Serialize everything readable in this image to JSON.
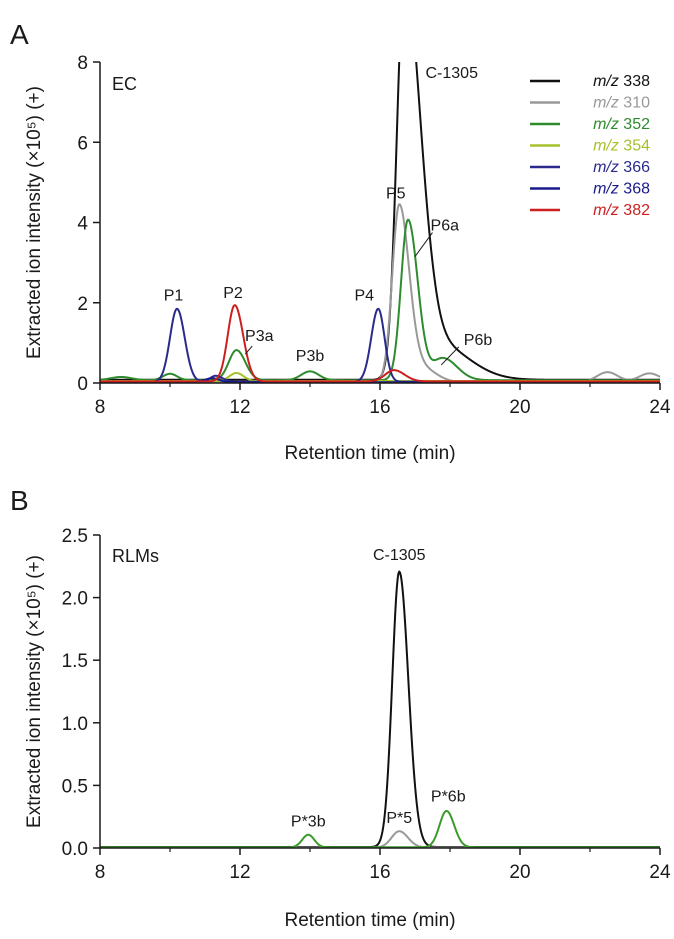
{
  "chart_data": [
    {
      "type": "line",
      "panel_letter": "A",
      "inset_label": "EC",
      "xlabel": "Retention time (min)",
      "ylabel": "Extracted ion intensity (×10⁵) (+)",
      "xlim": [
        8,
        24
      ],
      "ylim": [
        0,
        8
      ],
      "xticks": [
        8,
        12,
        16,
        20,
        24
      ],
      "yticks": [
        0,
        2,
        4,
        6,
        8
      ],
      "ytick_labels": [
        "0",
        "2",
        "4",
        "6",
        "8"
      ],
      "legend_position": "top-right",
      "series": [
        {
          "name": "338",
          "name_prefix": "m/z",
          "color": "#111111",
          "baseline": 0.08,
          "peaks": [
            {
              "x": 16.7,
              "h": 10.0,
              "wl": 0.22,
              "wr": 0.45
            },
            {
              "x": 17.6,
              "h": 0.9,
              "wl": 0.4,
              "wr": 0.9
            }
          ]
        },
        {
          "name": "310",
          "name_prefix": "m/z",
          "color": "#999999",
          "baseline": 0.02,
          "peaks": [
            {
              "x": 16.55,
              "h": 4.4,
              "wl": 0.2,
              "wr": 0.28
            },
            {
              "x": 17.2,
              "h": 0.35,
              "wl": 0.3,
              "wr": 0.4
            },
            {
              "x": 22.5,
              "h": 0.25,
              "wl": 0.3,
              "wr": 0.3
            },
            {
              "x": 23.7,
              "h": 0.22,
              "wl": 0.3,
              "wr": 0.3
            }
          ]
        },
        {
          "name": "352",
          "name_prefix": "m/z",
          "color": "#2e8b2e",
          "baseline": 0.07,
          "peaks": [
            {
              "x": 8.6,
              "h": 0.08,
              "wl": 0.3,
              "wr": 0.3
            },
            {
              "x": 10.0,
              "h": 0.16,
              "wl": 0.2,
              "wr": 0.2
            },
            {
              "x": 11.9,
              "h": 0.75,
              "wl": 0.22,
              "wr": 0.25
            },
            {
              "x": 14.0,
              "h": 0.22,
              "wl": 0.25,
              "wr": 0.25
            },
            {
              "x": 16.8,
              "h": 4.0,
              "wl": 0.2,
              "wr": 0.28
            },
            {
              "x": 17.8,
              "h": 0.55,
              "wl": 0.3,
              "wr": 0.4
            }
          ]
        },
        {
          "name": "354",
          "name_prefix": "m/z",
          "color": "#a6c22a",
          "baseline": 0.05,
          "peaks": [
            {
              "x": 11.9,
              "h": 0.2,
              "wl": 0.2,
              "wr": 0.2
            }
          ]
        },
        {
          "name": "366",
          "name_prefix": "m/z",
          "color": "#2a2a8c",
          "baseline": 0.03,
          "peaks": [
            {
              "x": 10.2,
              "h": 1.82,
              "wl": 0.2,
              "wr": 0.22
            },
            {
              "x": 11.3,
              "h": 0.15,
              "wl": 0.15,
              "wr": 0.2
            },
            {
              "x": 15.95,
              "h": 1.82,
              "wl": 0.2,
              "wr": 0.18
            }
          ]
        },
        {
          "name": "368",
          "name_prefix": "m/z",
          "color": "#1a1a8a",
          "baseline": 0.02,
          "peaks": [
            {
              "x": 11.2,
              "h": 0.1,
              "wl": 0.2,
              "wr": 0.2
            }
          ]
        },
        {
          "name": "382",
          "name_prefix": "m/z",
          "color": "#cc1f1f",
          "baseline": 0.04,
          "peaks": [
            {
              "x": 11.85,
              "h": 1.9,
              "wl": 0.2,
              "wr": 0.24
            },
            {
              "x": 16.4,
              "h": 0.28,
              "wl": 0.25,
              "wr": 0.3
            }
          ]
        }
      ],
      "annotations": [
        {
          "text": "C-1305",
          "x": 17.3,
          "y": 7.6,
          "anchor": "start"
        },
        {
          "text": "P1",
          "x": 10.1,
          "y": 2.05,
          "anchor": "middle"
        },
        {
          "text": "P2",
          "x": 11.8,
          "y": 2.12,
          "anchor": "middle"
        },
        {
          "text": "P3a",
          "x": 12.55,
          "y": 1.05,
          "anchor": "middle",
          "leader": [
            12.15,
            0.72,
            12.35,
            0.92
          ]
        },
        {
          "text": "P3b",
          "x": 14.0,
          "y": 0.55,
          "anchor": "middle"
        },
        {
          "text": "P4",
          "x": 15.55,
          "y": 2.05,
          "anchor": "middle"
        },
        {
          "text": "P5",
          "x": 16.45,
          "y": 4.6,
          "anchor": "middle"
        },
        {
          "text": "P6a",
          "x": 17.85,
          "y": 3.8,
          "anchor": "middle",
          "leader": [
            17.0,
            3.15,
            17.5,
            3.75
          ]
        },
        {
          "text": "P6b",
          "x": 18.8,
          "y": 0.95,
          "anchor": "middle",
          "leader": [
            17.75,
            0.45,
            18.25,
            0.9
          ]
        }
      ]
    },
    {
      "type": "line",
      "panel_letter": "B",
      "inset_label": "RLMs",
      "xlabel": "Retention time (min)",
      "ylabel": "Extracted ion intensity (×10⁵) (+)",
      "xlim": [
        8,
        24
      ],
      "ylim": [
        0,
        2.5
      ],
      "xticks": [
        8,
        12,
        16,
        20,
        24
      ],
      "yticks": [
        0,
        0.5,
        1.0,
        1.5,
        2.0,
        2.5
      ],
      "ytick_labels": [
        "0.0",
        "0.5",
        "1.0",
        "1.5",
        "2.0",
        "2.5"
      ],
      "series": [
        {
          "name": "338",
          "color": "#111111",
          "baseline": 0.008,
          "peaks": [
            {
              "x": 16.55,
              "h": 2.2,
              "wl": 0.2,
              "wr": 0.26
            }
          ]
        },
        {
          "name": "310",
          "color": "#999999",
          "baseline": 0.004,
          "peaks": [
            {
              "x": 16.55,
              "h": 0.13,
              "wl": 0.22,
              "wr": 0.25
            }
          ]
        },
        {
          "name": "352",
          "color": "#3a9a2a",
          "baseline": 0.006,
          "peaks": [
            {
              "x": 13.95,
              "h": 0.1,
              "wl": 0.17,
              "wr": 0.17
            },
            {
              "x": 17.9,
              "h": 0.29,
              "wl": 0.2,
              "wr": 0.22
            }
          ]
        }
      ],
      "annotations": [
        {
          "text": "C-1305",
          "x": 16.55,
          "y": 2.3,
          "anchor": "middle"
        },
        {
          "text": "P*3b",
          "x": 13.95,
          "y": 0.17,
          "anchor": "middle"
        },
        {
          "text": "P*5",
          "x": 16.55,
          "y": 0.2,
          "anchor": "middle"
        },
        {
          "text": "P*6b",
          "x": 17.95,
          "y": 0.37,
          "anchor": "middle"
        }
      ]
    }
  ]
}
